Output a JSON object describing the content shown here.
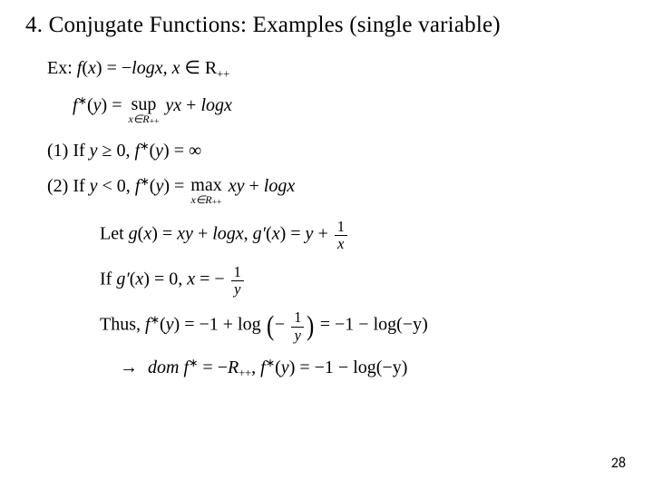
{
  "slide": {
    "title": "4. Conjugate Functions: Examples (single variable)",
    "page_number": "28",
    "background_color": "#ffffff",
    "text_color": "#000000",
    "title_fontsize": 25,
    "body_fontsize": 20
  },
  "text": {
    "ex_label": "Ex: ",
    "fx": "f",
    "x": "x",
    "y": "y",
    "g": "g",
    "eq": " = ",
    "minus": "−",
    "plus": " + ",
    "log": "log",
    "logx": "logx",
    "comma_sp": ",   ",
    "in": " ∈ ",
    "Rpp": "R",
    "pp": "++",
    "star": "∗",
    "sup_word": "sup",
    "max_word": "max",
    "under_x": "x∈R",
    "yx": "yx",
    "xy": "xy",
    "case1": "(1) If ",
    "ge0": " ≥ 0,   ",
    "inf": "∞",
    "case2": "(2) If ",
    "lt0": " < 0,   ",
    "let": "Let ",
    "gprime": "g′",
    "if": "If ",
    "eq0": " = 0, ",
    "thus": "Thus, ",
    "m1": "−1",
    "arrow": "→",
    "dom": "dom ",
    "open_p": "(",
    "close_p": ")",
    "num1": "1",
    "neg1_over_y": "− ",
    "negy": "(−y)"
  }
}
